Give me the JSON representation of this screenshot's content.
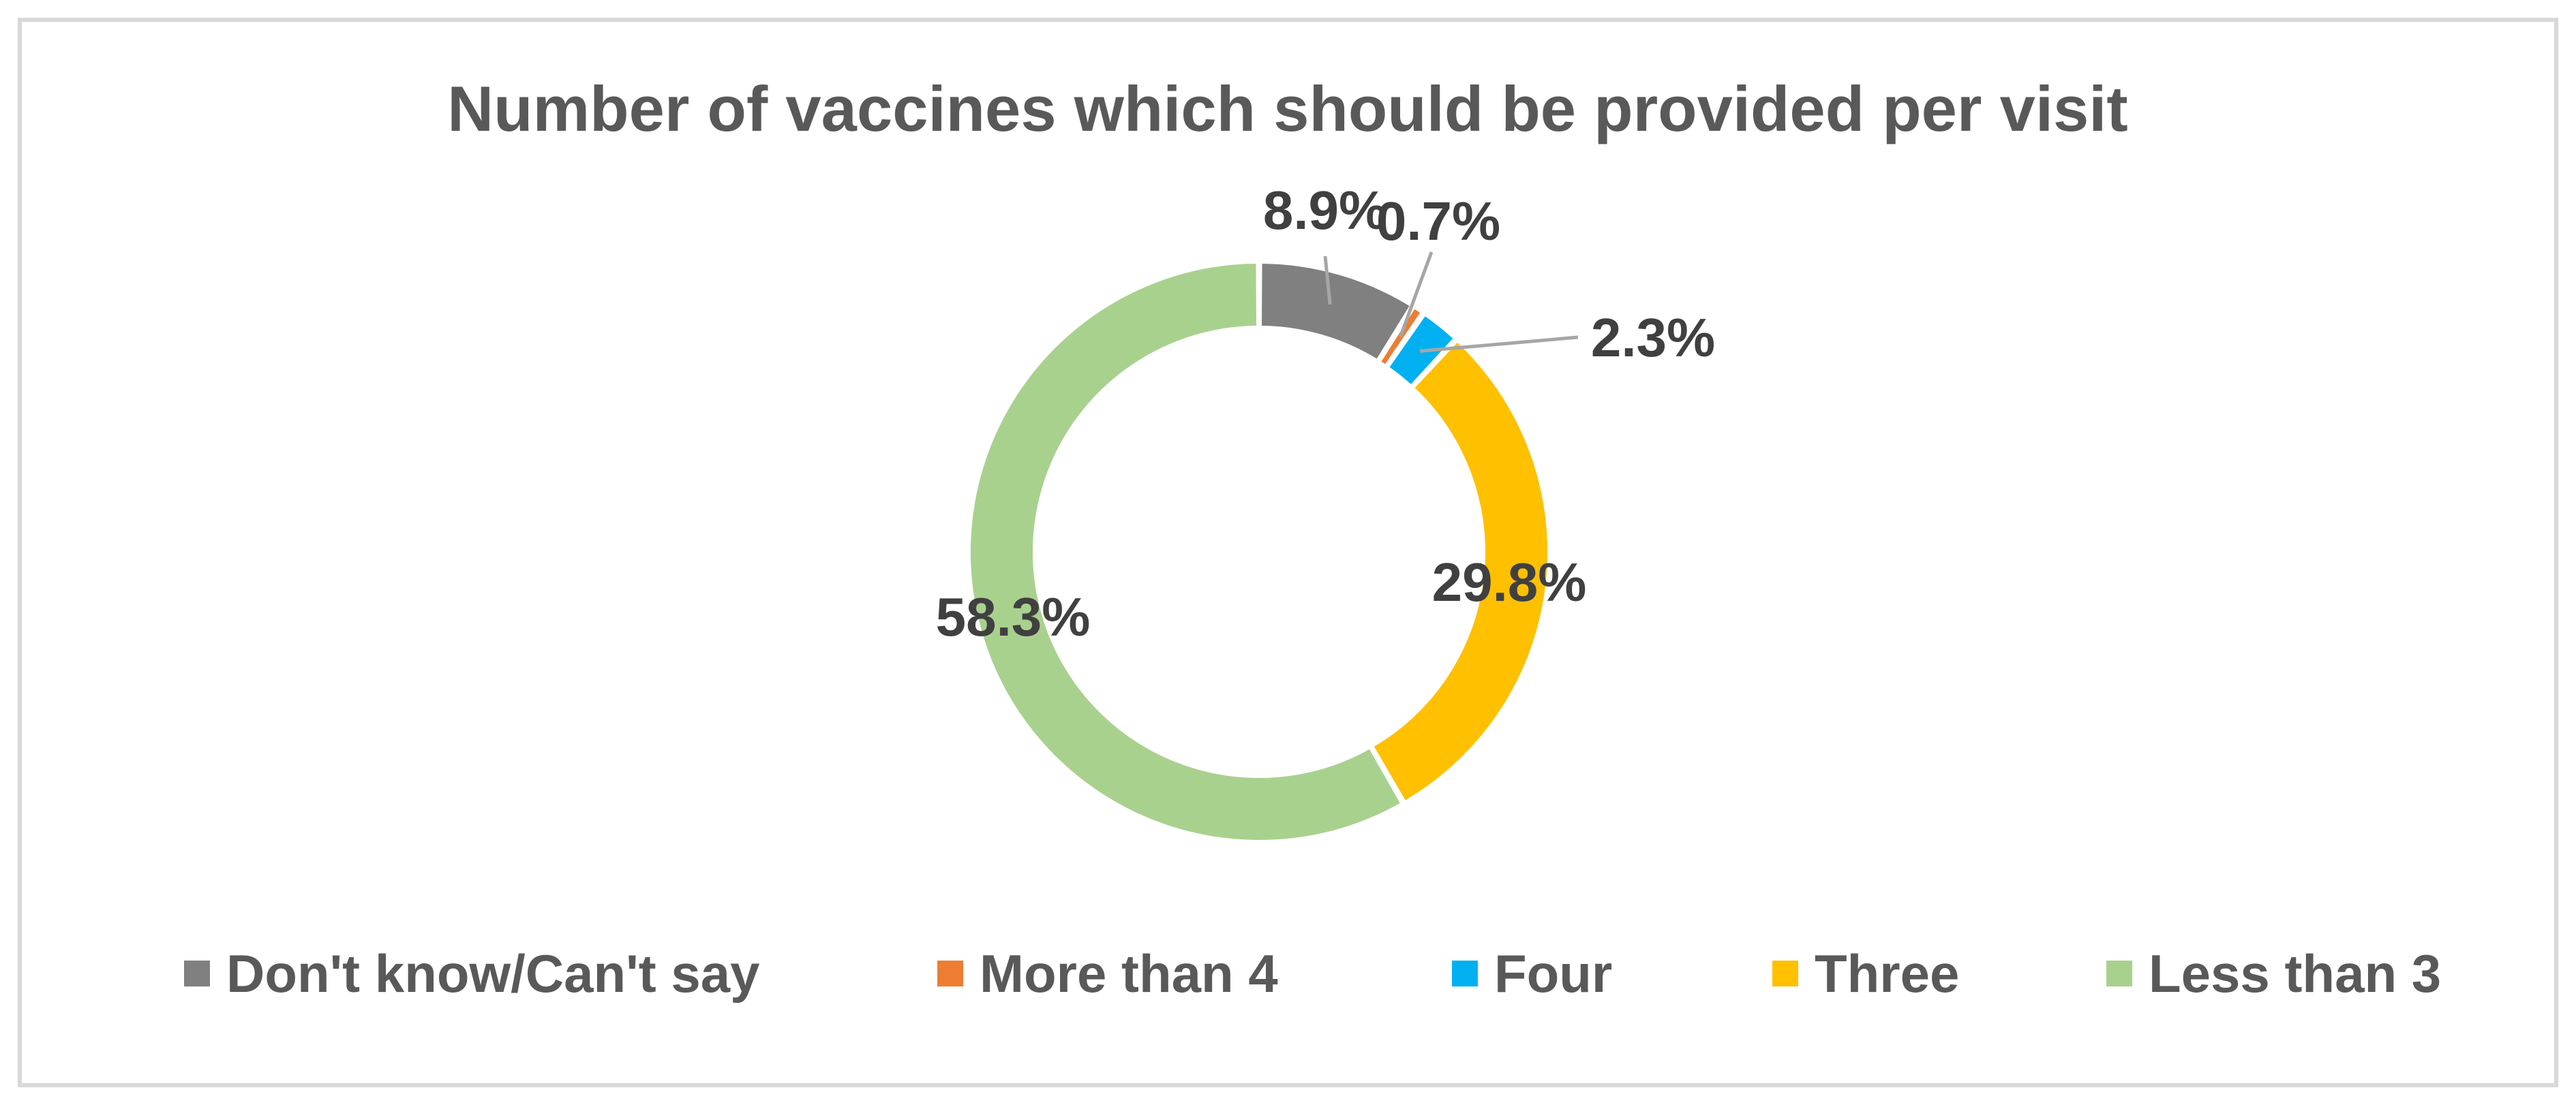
{
  "chart_data": {
    "type": "pie",
    "variant": "doughnut",
    "title": "Number of vaccines which should be provided per visit",
    "legend_position": "bottom",
    "slices": [
      {
        "label": "Don't know/Can't say",
        "value": 8.9,
        "display": "8.9%",
        "color": "#808080"
      },
      {
        "label": "More than 4",
        "value": 0.7,
        "display": "0.7%",
        "color": "#ed7d31"
      },
      {
        "label": "Four",
        "value": 2.3,
        "display": "2.3%",
        "color": "#00b0f0"
      },
      {
        "label": "Three",
        "value": 29.8,
        "display": "29.8%",
        "color": "#ffc000"
      },
      {
        "label": "Less than 3",
        "value": 58.3,
        "display": "58.3%",
        "color": "#a9d18e"
      }
    ]
  }
}
